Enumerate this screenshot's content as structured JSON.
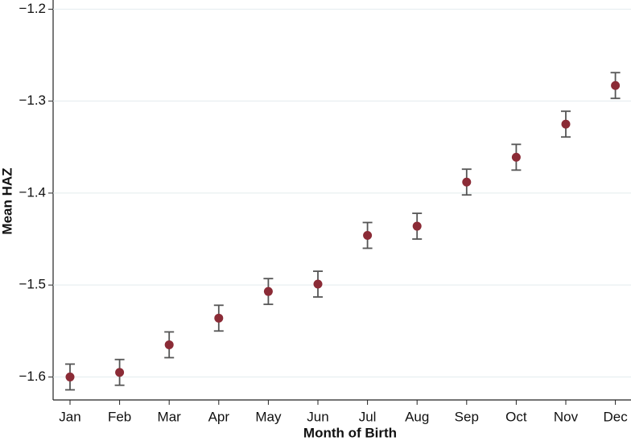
{
  "chart_data": {
    "type": "errorbar",
    "xlabel": "Month of Birth",
    "ylabel": "Mean HAZ",
    "categories": [
      "Jan",
      "Feb",
      "Mar",
      "Apr",
      "May",
      "Jun",
      "Jul",
      "Aug",
      "Sep",
      "Oct",
      "Nov",
      "Dec"
    ],
    "values": [
      -1.6,
      -1.595,
      -1.565,
      -1.536,
      -1.507,
      -1.499,
      -1.446,
      -1.436,
      -1.388,
      -1.361,
      -1.325,
      -1.283
    ],
    "errors": [
      0.014,
      0.014,
      0.014,
      0.014,
      0.014,
      0.014,
      0.014,
      0.014,
      0.014,
      0.014,
      0.014,
      0.014
    ],
    "color": "#8b2b36",
    "error_color": "#555555",
    "ylim": [
      -1.625,
      -1.19
    ],
    "yticks": [
      {
        "value": -1.6,
        "label": "−1.6"
      },
      {
        "value": -1.5,
        "label": "−1.5"
      },
      {
        "value": -1.4,
        "label": "−1.4"
      },
      {
        "value": -1.3,
        "label": "−1.3"
      },
      {
        "value": -1.2,
        "label": "−1.2"
      }
    ],
    "grid": true
  }
}
